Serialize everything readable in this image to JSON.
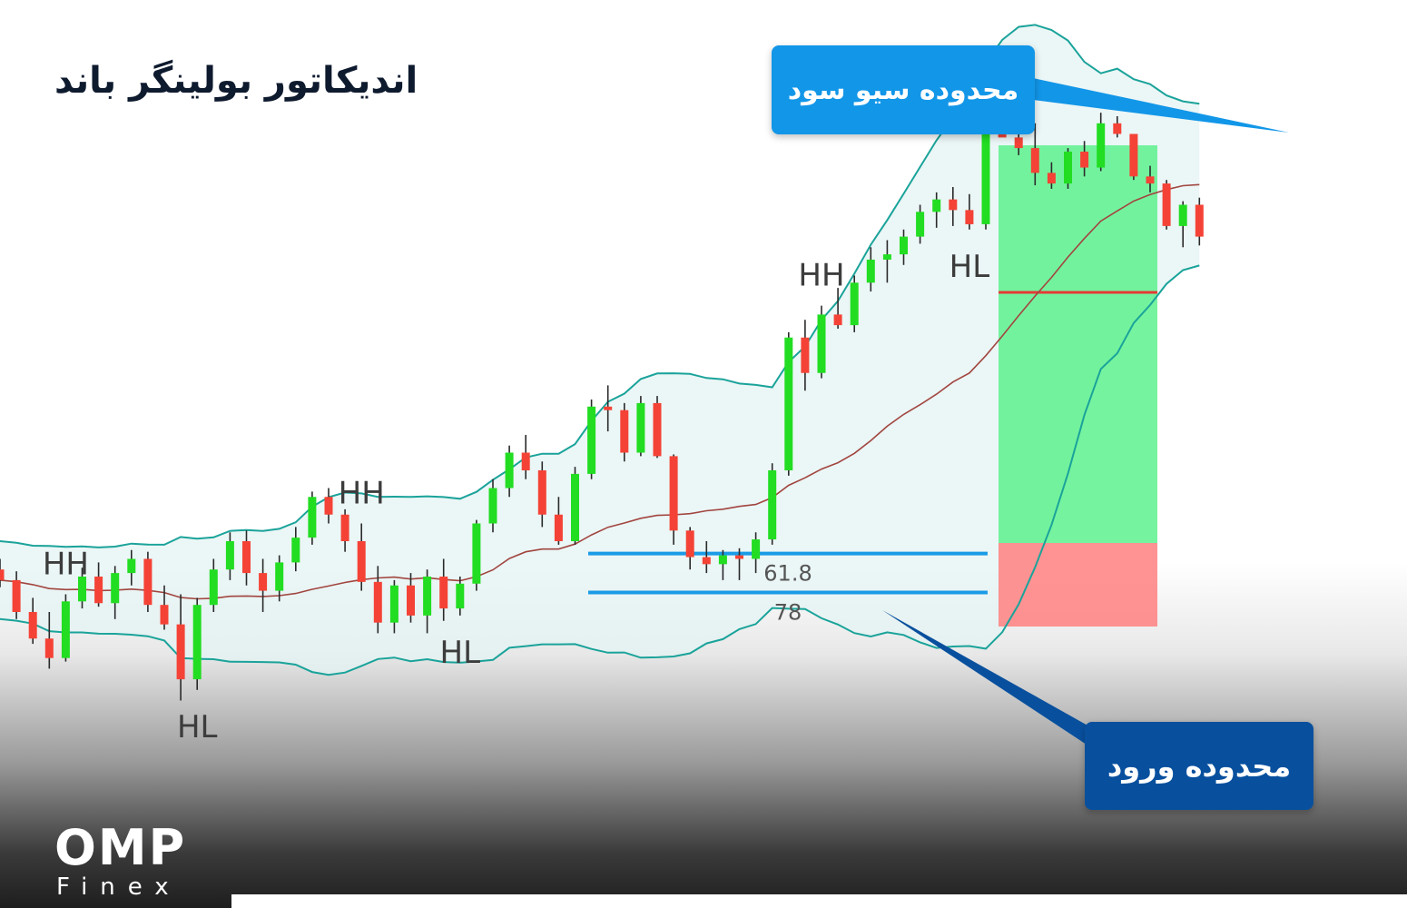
{
  "title": "اندیکاتور بولینگر باند",
  "callouts": {
    "take_profit": "محدوده سیو سود",
    "entry": "محدوده ورود"
  },
  "logo": {
    "main": "OMP",
    "sub": "Finex"
  },
  "colors": {
    "bullish": "#22dd22",
    "bearish": "#f44336",
    "band": "#1aa39a",
    "middle_band": "#a1453f",
    "fib_line": "#1a9be6",
    "profit_zone": "#5ef18e",
    "loss_zone": "#ff8080",
    "callout_tp": "#1296e8",
    "callout_entry": "#08509e"
  },
  "chart_data": {
    "type": "candlestick",
    "overlays": [
      "bollinger_upper",
      "bollinger_middle",
      "bollinger_lower"
    ],
    "grid": false,
    "swing_labels": [
      {
        "text": "HH",
        "index": 4
      },
      {
        "text": "HL",
        "index": 12
      },
      {
        "text": "HH",
        "index": 22
      },
      {
        "text": "HL",
        "index": 28
      },
      {
        "text": "HH",
        "index": 50
      },
      {
        "text": "HL",
        "index": 59
      }
    ],
    "fib_levels": [
      {
        "label": "61.8",
        "price": 1.3
      },
      {
        "label": "78",
        "price": -0.9
      }
    ],
    "candles": [
      [
        0.4,
        1.0,
        -0.6,
        -0.2
      ],
      [
        -0.2,
        0.3,
        -2.4,
        -2.0
      ],
      [
        -2.0,
        -1.2,
        -3.8,
        -3.5
      ],
      [
        -3.5,
        -2.0,
        -5.2,
        -4.6
      ],
      [
        -4.6,
        -1.0,
        -4.8,
        -1.4
      ],
      [
        -1.4,
        0.5,
        -1.8,
        0.0
      ],
      [
        0.0,
        0.8,
        -1.7,
        -1.5
      ],
      [
        -1.5,
        0.6,
        -2.4,
        0.2
      ],
      [
        0.2,
        1.5,
        -0.5,
        1.0
      ],
      [
        1.0,
        1.4,
        -2.0,
        -1.6
      ],
      [
        -1.6,
        -0.5,
        -3.0,
        -2.7
      ],
      [
        -2.7,
        -1.0,
        -7.0,
        -5.8
      ],
      [
        -5.8,
        -1.2,
        -6.4,
        -1.6
      ],
      [
        -1.6,
        1.0,
        -2.0,
        0.4
      ],
      [
        0.4,
        2.5,
        -0.2,
        2.0
      ],
      [
        2.0,
        2.6,
        -0.5,
        0.2
      ],
      [
        0.2,
        1.0,
        -2.0,
        -0.8
      ],
      [
        -0.8,
        1.2,
        -1.4,
        0.8
      ],
      [
        0.8,
        2.8,
        0.3,
        2.2
      ],
      [
        2.2,
        4.8,
        1.8,
        4.5
      ],
      [
        4.5,
        5.0,
        3.0,
        3.5
      ],
      [
        3.5,
        3.8,
        1.4,
        2.0
      ],
      [
        2.0,
        3.0,
        -0.8,
        -0.3
      ],
      [
        -0.3,
        0.6,
        -3.2,
        -2.6
      ],
      [
        -2.6,
        -0.2,
        -3.2,
        -0.5
      ],
      [
        -0.5,
        0.2,
        -2.6,
        -2.2
      ],
      [
        -2.2,
        0.4,
        -3.2,
        0.0
      ],
      [
        0.0,
        1.0,
        -2.5,
        -1.8
      ],
      [
        -1.8,
        0.0,
        -2.2,
        -0.4
      ],
      [
        -0.4,
        3.2,
        -0.8,
        3.0
      ],
      [
        3.0,
        5.5,
        2.5,
        5.0
      ],
      [
        5.0,
        7.4,
        4.5,
        7.0
      ],
      [
        7.0,
        8.0,
        5.5,
        6.0
      ],
      [
        6.0,
        6.5,
        2.8,
        3.5
      ],
      [
        3.5,
        4.5,
        1.8,
        2.0
      ],
      [
        2.0,
        6.2,
        1.8,
        5.8
      ],
      [
        5.8,
        10.0,
        5.5,
        9.6
      ],
      [
        9.6,
        10.8,
        8.2,
        9.4
      ],
      [
        9.4,
        9.8,
        6.5,
        7.0
      ],
      [
        7.0,
        10.2,
        6.8,
        9.8
      ],
      [
        9.8,
        10.2,
        6.7,
        6.8
      ],
      [
        6.8,
        6.9,
        1.8,
        2.6
      ],
      [
        2.6,
        2.8,
        0.4,
        1.1
      ],
      [
        1.1,
        2.0,
        0.2,
        0.7
      ],
      [
        0.7,
        1.5,
        -0.2,
        1.2
      ],
      [
        1.2,
        1.6,
        -0.2,
        1.0
      ],
      [
        1.0,
        2.5,
        0.2,
        2.1
      ],
      [
        2.1,
        6.4,
        1.8,
        6.0
      ],
      [
        6.0,
        13.8,
        5.7,
        13.5
      ],
      [
        13.5,
        14.5,
        10.5,
        11.5
      ],
      [
        11.5,
        15.3,
        11.2,
        14.8
      ],
      [
        14.8,
        16.3,
        14.0,
        14.2
      ],
      [
        14.2,
        17.0,
        13.8,
        16.6
      ],
      [
        16.6,
        18.6,
        16.1,
        17.9
      ],
      [
        17.9,
        19.0,
        16.6,
        18.2
      ],
      [
        18.2,
        19.6,
        17.6,
        19.2
      ],
      [
        19.2,
        21.0,
        18.8,
        20.6
      ],
      [
        20.6,
        21.7,
        19.7,
        21.3
      ],
      [
        21.3,
        22.0,
        19.8,
        20.7
      ],
      [
        20.7,
        21.6,
        19.6,
        19.9
      ],
      [
        19.9,
        27.7,
        19.6,
        26.4
      ],
      [
        26.4,
        26.8,
        24.9,
        24.8
      ],
      [
        24.8,
        25.4,
        23.8,
        24.2
      ],
      [
        24.2,
        25.6,
        22.1,
        22.8
      ],
      [
        22.8,
        23.4,
        21.9,
        22.2
      ],
      [
        22.2,
        24.2,
        21.9,
        24.0
      ],
      [
        24.0,
        24.6,
        22.6,
        23.1
      ],
      [
        23.1,
        26.2,
        22.9,
        25.6
      ],
      [
        25.6,
        26.0,
        24.8,
        25.0
      ],
      [
        25.0,
        24.8,
        22.4,
        22.6
      ],
      [
        22.6,
        23.2,
        21.7,
        22.2
      ],
      [
        22.2,
        22.4,
        19.6,
        19.8
      ],
      [
        19.8,
        21.2,
        18.6,
        21.0
      ],
      [
        21.0,
        21.4,
        18.7,
        19.2
      ]
    ]
  }
}
